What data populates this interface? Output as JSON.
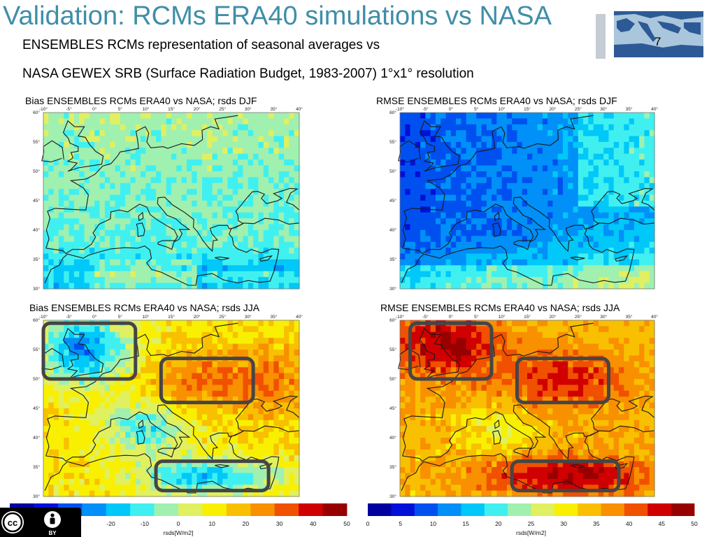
{
  "header": {
    "title": "Validation: RCMs ERA40 simulations vs NASA",
    "subtitle_line1": "ENSEMBLES RCMs representation of seasonal averages vs",
    "subtitle_line2": "NASA GEWEX SRB (Surface Radiation Budget, 1983-2007) 1°x1° resolution",
    "slide_number": "7"
  },
  "license": {
    "text": "BY",
    "icons": [
      "cc-icon",
      "attribution-icon"
    ]
  },
  "colors": {
    "title": "#3f8ea8",
    "box_outline": "#454545",
    "coastline": "#1a1a1a",
    "logo_sea": "#a9c6dc",
    "logo_land": "#2d5a96"
  },
  "chart_data": [
    {
      "type": "heatmap",
      "title": "Bias ENSEMBLES RCMs ERA40 vs NASA; rsds DJF",
      "x_ticks": [
        "-10°",
        "-5°",
        "0°",
        "5°",
        "10°",
        "15°",
        "20°",
        "25°",
        "30°",
        "35°",
        "40°"
      ],
      "y_ticks": [
        "60°",
        "55°",
        "50°",
        "45°",
        "40°",
        "35°",
        "30°"
      ],
      "lon_range": [
        -10,
        40
      ],
      "lat_range": [
        30,
        60
      ],
      "variant": "bias_djf",
      "highlight_regions": []
    },
    {
      "type": "heatmap",
      "title": "RMSE ENSEMBLES RCMs ERA40 vs NASA; rsds DJF",
      "x_ticks": [
        "-10°",
        "-5°",
        "0°",
        "5°",
        "10°",
        "15°",
        "20°",
        "25°",
        "30°",
        "35°",
        "40°"
      ],
      "y_ticks": [
        "60°",
        "55°",
        "50°",
        "45°",
        "40°",
        "35°",
        "30°"
      ],
      "lon_range": [
        -10,
        40
      ],
      "lat_range": [
        30,
        60
      ],
      "variant": "rmse_djf",
      "highlight_regions": []
    },
    {
      "type": "heatmap",
      "title": "Bias ENSEMBLES RCMs ERA40 vs NASA; rsds JJA",
      "x_ticks": [
        "-10°",
        "-5°",
        "0°",
        "5°",
        "10°",
        "15°",
        "20°",
        "25°",
        "30°",
        "35°",
        "40°"
      ],
      "y_ticks": [
        "60°",
        "55°",
        "50°",
        "45°",
        "40°",
        "35°",
        "30°"
      ],
      "lon_range": [
        -10,
        40
      ],
      "lat_range": [
        30,
        60
      ],
      "variant": "bias_jja",
      "highlight_regions": [
        {
          "name": "northwest-europe",
          "lon": [
            -10,
            8
          ],
          "lat": [
            50,
            59.5
          ]
        },
        {
          "name": "central-europe",
          "lon": [
            13,
            31
          ],
          "lat": [
            46,
            53.5
          ]
        },
        {
          "name": "north-africa",
          "lon": [
            12,
            34
          ],
          "lat": [
            31,
            36
          ]
        }
      ]
    },
    {
      "type": "heatmap",
      "title": "RMSE ENSEMBLES RCMs ERA40 vs NASA; rsds JJA",
      "x_ticks": [
        "-10°",
        "-5°",
        "0°",
        "5°",
        "10°",
        "15°",
        "20°",
        "25°",
        "30°",
        "35°",
        "40°"
      ],
      "y_ticks": [
        "60°",
        "55°",
        "50°",
        "45°",
        "40°",
        "35°",
        "30°"
      ],
      "lon_range": [
        -10,
        40
      ],
      "lat_range": [
        30,
        60
      ],
      "variant": "rmse_jja",
      "highlight_regions": [
        {
          "name": "northwest-europe",
          "lon": [
            -8,
            8
          ],
          "lat": [
            50,
            59.5
          ]
        },
        {
          "name": "central-europe",
          "lon": [
            13,
            31
          ],
          "lat": [
            46,
            53.5
          ]
        },
        {
          "name": "north-africa",
          "lon": [
            12,
            33
          ],
          "lat": [
            31,
            36
          ]
        }
      ]
    }
  ],
  "colorbars": [
    {
      "unit": "rsds[W/m2]",
      "ticks": [
        "-20",
        "-10",
        "0",
        "10",
        "20",
        "30",
        "40",
        "50"
      ],
      "tick_values": [
        -20,
        -10,
        0,
        10,
        20,
        30,
        40,
        50
      ],
      "range": [
        -50,
        50
      ]
    },
    {
      "unit": "rsds[W/m2]",
      "ticks": [
        "0",
        "5",
        "10",
        "15",
        "20",
        "25",
        "30",
        "35",
        "40",
        "45",
        "50"
      ],
      "tick_values": [
        0,
        5,
        10,
        15,
        20,
        25,
        30,
        35,
        40,
        45,
        50
      ],
      "range": [
        0,
        50
      ]
    }
  ],
  "colormap": [
    "#0000a0",
    "#0010d8",
    "#0050f0",
    "#0090f8",
    "#00c8f8",
    "#40f0f0",
    "#a0f0b0",
    "#e0f060",
    "#f8f000",
    "#f8c000",
    "#f89000",
    "#f05000",
    "#d00000",
    "#980000"
  ]
}
